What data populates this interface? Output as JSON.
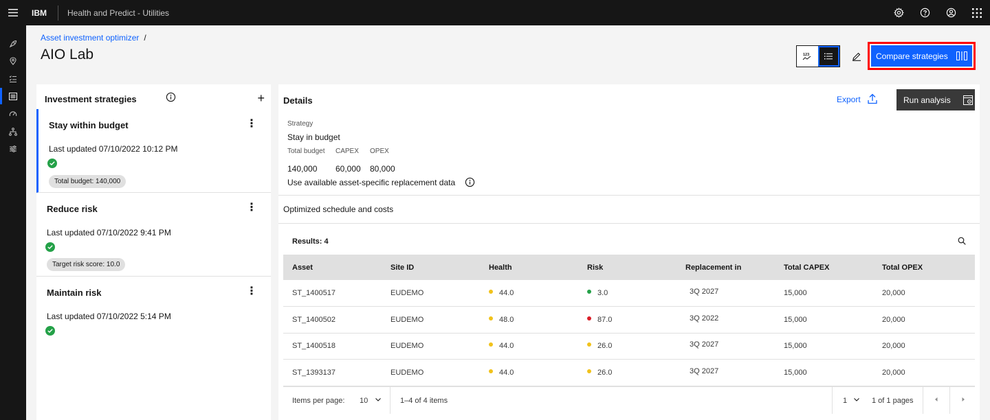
{
  "header": {
    "brand": "IBM",
    "app_title": "Health and Predict - Utilities",
    "icons": [
      "settings-icon",
      "help-icon",
      "user-icon",
      "app-switcher-icon"
    ]
  },
  "rail": {
    "items": [
      "rocket-icon",
      "location-icon",
      "task-list-icon",
      "dashboard-icon",
      "gauge-icon",
      "hierarchy-icon",
      "sliders-icon"
    ],
    "active_index": 3
  },
  "breadcrumb": {
    "link": "Asset investment optimizer",
    "separator": "/"
  },
  "page": {
    "title": "AIO Lab"
  },
  "toolbar": {
    "compare_label": "Compare strategies"
  },
  "strategies": {
    "title": "Investment strategies",
    "add_symbol": "+",
    "menu_symbol": "⋮",
    "items": [
      {
        "name": "Stay within budget",
        "updated": "Last updated 07/10/2022 10:12 PM",
        "tag": "Total budget: 140,000",
        "active": true
      },
      {
        "name": "Reduce risk",
        "updated": "Last updated 07/10/2022 9:41 PM",
        "tag": "Target risk score: 10.0",
        "active": false
      },
      {
        "name": "Maintain risk",
        "updated": "Last updated 07/10/2022 5:14 PM",
        "tag": "",
        "active": false
      }
    ]
  },
  "details": {
    "title": "Details",
    "export_label": "Export",
    "run_label": "Run analysis",
    "strategy_label": "Strategy",
    "strategy_value": "Stay in budget",
    "total_budget_label": "Total budget",
    "capex_label": "CAPEX",
    "opex_label": "OPEX",
    "total_budget_value": "140,000",
    "capex_value": "60,000",
    "opex_value": "80,000",
    "replacement_data_label": "Use available asset-specific replacement data",
    "schedule_label": "Optimized schedule and costs"
  },
  "table": {
    "results_label": "Results: 4",
    "columns": [
      "Asset",
      "Site ID",
      "Health",
      "Risk",
      "Replacement in",
      "Total CAPEX",
      "Total OPEX"
    ],
    "rows": [
      {
        "asset": "ST_1400517",
        "site": "EUDEMO",
        "health": "44.0",
        "health_color": "#f1c21b",
        "risk": "3.0",
        "risk_color": "#24a148",
        "replacement": "3Q 2027",
        "capex": "15,000",
        "opex": "20,000"
      },
      {
        "asset": "ST_1400502",
        "site": "EUDEMO",
        "health": "48.0",
        "health_color": "#f1c21b",
        "risk": "87.0",
        "risk_color": "#da1e28",
        "replacement": "3Q 2022",
        "capex": "15,000",
        "opex": "20,000"
      },
      {
        "asset": "ST_1400518",
        "site": "EUDEMO",
        "health": "44.0",
        "health_color": "#f1c21b",
        "risk": "26.0",
        "risk_color": "#f1c21b",
        "replacement": "3Q 2027",
        "capex": "15,000",
        "opex": "20,000"
      },
      {
        "asset": "ST_1393137",
        "site": "EUDEMO",
        "health": "44.0",
        "health_color": "#f1c21b",
        "risk": "26.0",
        "risk_color": "#f1c21b",
        "replacement": "3Q 2027",
        "capex": "15,000",
        "opex": "20,000"
      }
    ]
  },
  "pagination": {
    "items_per_page_label": "Items per page:",
    "items_per_page_value": "10",
    "range_label": "1–4 of 4 items",
    "page_value": "1",
    "of_pages_label": "1 of 1 pages"
  },
  "colors": {
    "accent": "#0f62fe",
    "header_bg": "#161616",
    "highlight_border": "#ff0000",
    "success": "#24a148",
    "warning": "#f1c21b",
    "danger": "#da1e28"
  }
}
